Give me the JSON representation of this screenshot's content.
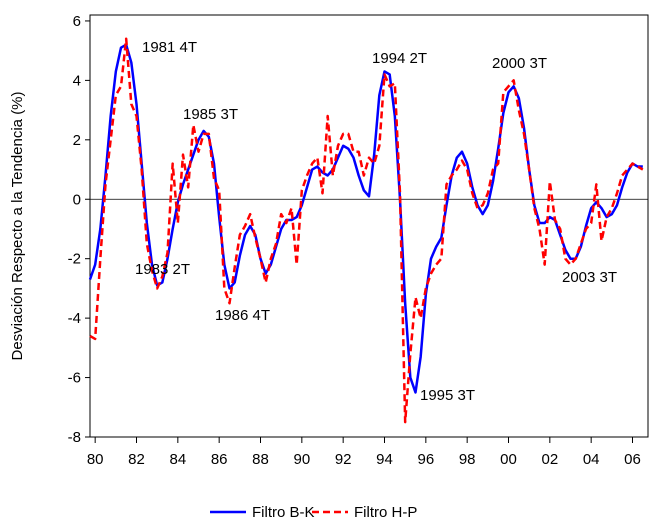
{
  "chart_data": {
    "type": "line",
    "ylabel": "Desviación Respecto a la Tendencia (%)",
    "x": [
      1979.75,
      1980,
      1980.25,
      1980.5,
      1980.75,
      1981,
      1981.25,
      1981.5,
      1981.75,
      1982,
      1982.25,
      1982.5,
      1982.75,
      1983,
      1983.25,
      1983.5,
      1983.75,
      1984,
      1984.25,
      1984.5,
      1984.75,
      1985,
      1985.25,
      1985.5,
      1985.75,
      1986,
      1986.25,
      1986.5,
      1986.75,
      1987,
      1987.25,
      1987.5,
      1987.75,
      1988,
      1988.25,
      1988.5,
      1988.75,
      1989,
      1989.25,
      1989.5,
      1989.75,
      1990,
      1990.25,
      1990.5,
      1990.75,
      1991,
      1991.25,
      1991.5,
      1991.75,
      1992,
      1992.25,
      1992.5,
      1992.75,
      1993,
      1993.25,
      1993.5,
      1993.75,
      1994,
      1994.25,
      1994.5,
      1994.75,
      1995,
      1995.25,
      1995.5,
      1995.75,
      1996,
      1996.25,
      1996.5,
      1996.75,
      1997,
      1997.25,
      1997.5,
      1997.75,
      1998,
      1998.25,
      1998.5,
      1998.75,
      1999,
      1999.25,
      1999.5,
      1999.75,
      2000,
      2000.25,
      2000.5,
      2000.75,
      2001,
      2001.25,
      2001.5,
      2001.75,
      2002,
      2002.25,
      2002.5,
      2002.75,
      2003,
      2003.25,
      2003.5,
      2003.75,
      2004,
      2004.25,
      2004.5,
      2004.75,
      2005,
      2005.25,
      2005.5,
      2005.75,
      2006,
      2006.25,
      2006.5
    ],
    "series": [
      {
        "name": "Filtro B-K",
        "color": "#0000ff",
        "dashed": false,
        "values": [
          -2.7,
          -2.2,
          -1.0,
          0.8,
          2.8,
          4.3,
          5.1,
          5.2,
          4.6,
          3.2,
          1.2,
          -0.8,
          -2.2,
          -2.9,
          -2.8,
          -2.0,
          -1.0,
          -0.1,
          0.5,
          1.0,
          1.5,
          2.0,
          2.3,
          2.1,
          1.2,
          -0.6,
          -2.2,
          -3.0,
          -2.8,
          -1.9,
          -1.2,
          -0.9,
          -1.2,
          -2.0,
          -2.5,
          -2.2,
          -1.6,
          -1.0,
          -0.7,
          -0.7,
          -0.6,
          -0.2,
          0.4,
          1.0,
          1.1,
          0.9,
          0.8,
          1.0,
          1.4,
          1.8,
          1.7,
          1.4,
          0.8,
          0.3,
          0.1,
          1.5,
          3.5,
          4.3,
          4.2,
          2.8,
          0.0,
          -3.5,
          -6.0,
          -6.5,
          -5.3,
          -3.2,
          -2.0,
          -1.6,
          -1.3,
          -0.2,
          0.8,
          1.4,
          1.6,
          1.2,
          0.4,
          -0.2,
          -0.5,
          -0.2,
          0.6,
          1.7,
          2.9,
          3.6,
          3.8,
          3.4,
          2.4,
          1.0,
          -0.2,
          -0.8,
          -0.8,
          -0.6,
          -0.7,
          -1.2,
          -1.7,
          -2.0,
          -2.0,
          -1.6,
          -0.9,
          -0.3,
          -0.1,
          -0.3,
          -0.6,
          -0.5,
          -0.2,
          0.4,
          0.9,
          1.2,
          1.1,
          1.1
        ]
      },
      {
        "name": "Filtro H-P",
        "color": "#ff0000",
        "dashed": true,
        "values": [
          -4.6,
          -4.7,
          -2.0,
          0.5,
          2.0,
          3.5,
          3.8,
          5.4,
          3.2,
          2.8,
          1.0,
          -1.5,
          -2.4,
          -3.0,
          -2.6,
          -1.8,
          1.2,
          -0.8,
          1.5,
          0.4,
          2.5,
          1.6,
          2.2,
          2.2,
          0.7,
          0.3,
          -3.0,
          -3.5,
          -2.3,
          -1.2,
          -0.9,
          -0.5,
          -1.3,
          -2.0,
          -2.8,
          -2.0,
          -1.5,
          -0.5,
          -0.8,
          -0.3,
          -2.2,
          0.3,
          0.8,
          1.2,
          1.4,
          0.2,
          2.8,
          0.8,
          1.8,
          2.2,
          2.2,
          1.6,
          1.6,
          0.8,
          1.4,
          1.2,
          1.8,
          4.2,
          3.8,
          3.9,
          0.2,
          -7.5,
          -5.2,
          -3.3,
          -4.0,
          -3.0,
          -2.5,
          -2.2,
          -2.0,
          0.5,
          0.8,
          1.0,
          1.3,
          1.0,
          0.2,
          -0.3,
          -0.2,
          0.2,
          1.0,
          1.2,
          3.6,
          3.8,
          4.0,
          3.0,
          2.2,
          1.0,
          -0.3,
          -1.0,
          -2.2,
          0.6,
          -0.7,
          -1.0,
          -2.0,
          -2.2,
          -2.0,
          -1.5,
          -1.0,
          -0.8,
          0.5,
          -1.4,
          -0.6,
          -0.3,
          0.2,
          0.8,
          1.0,
          1.2,
          1.1,
          1.0
        ]
      }
    ],
    "xlim": [
      1979.75,
      2006.75
    ],
    "xticks": [
      {
        "value": 1980,
        "label": "80"
      },
      {
        "value": 1982,
        "label": "82"
      },
      {
        "value": 1984,
        "label": "84"
      },
      {
        "value": 1986,
        "label": "86"
      },
      {
        "value": 1988,
        "label": "88"
      },
      {
        "value": 1990,
        "label": "90"
      },
      {
        "value": 1992,
        "label": "92"
      },
      {
        "value": 1994,
        "label": "94"
      },
      {
        "value": 1996,
        "label": "96"
      },
      {
        "value": 1998,
        "label": "98"
      },
      {
        "value": 2000,
        "label": "00"
      },
      {
        "value": 2002,
        "label": "02"
      },
      {
        "value": 2004,
        "label": "04"
      },
      {
        "value": 2006,
        "label": "06"
      }
    ],
    "ylim": [
      -8,
      6.2
    ],
    "yticks": [
      -8,
      -6,
      -4,
      -2,
      0,
      2,
      4,
      6
    ],
    "zero_line": true,
    "legend": "bottom",
    "annotations": [
      "1981 4T",
      "1985 3T",
      "1983 2T",
      "1986 4T",
      "1994 2T",
      "1995 3T",
      "2000 3T",
      "2003 3T"
    ]
  }
}
